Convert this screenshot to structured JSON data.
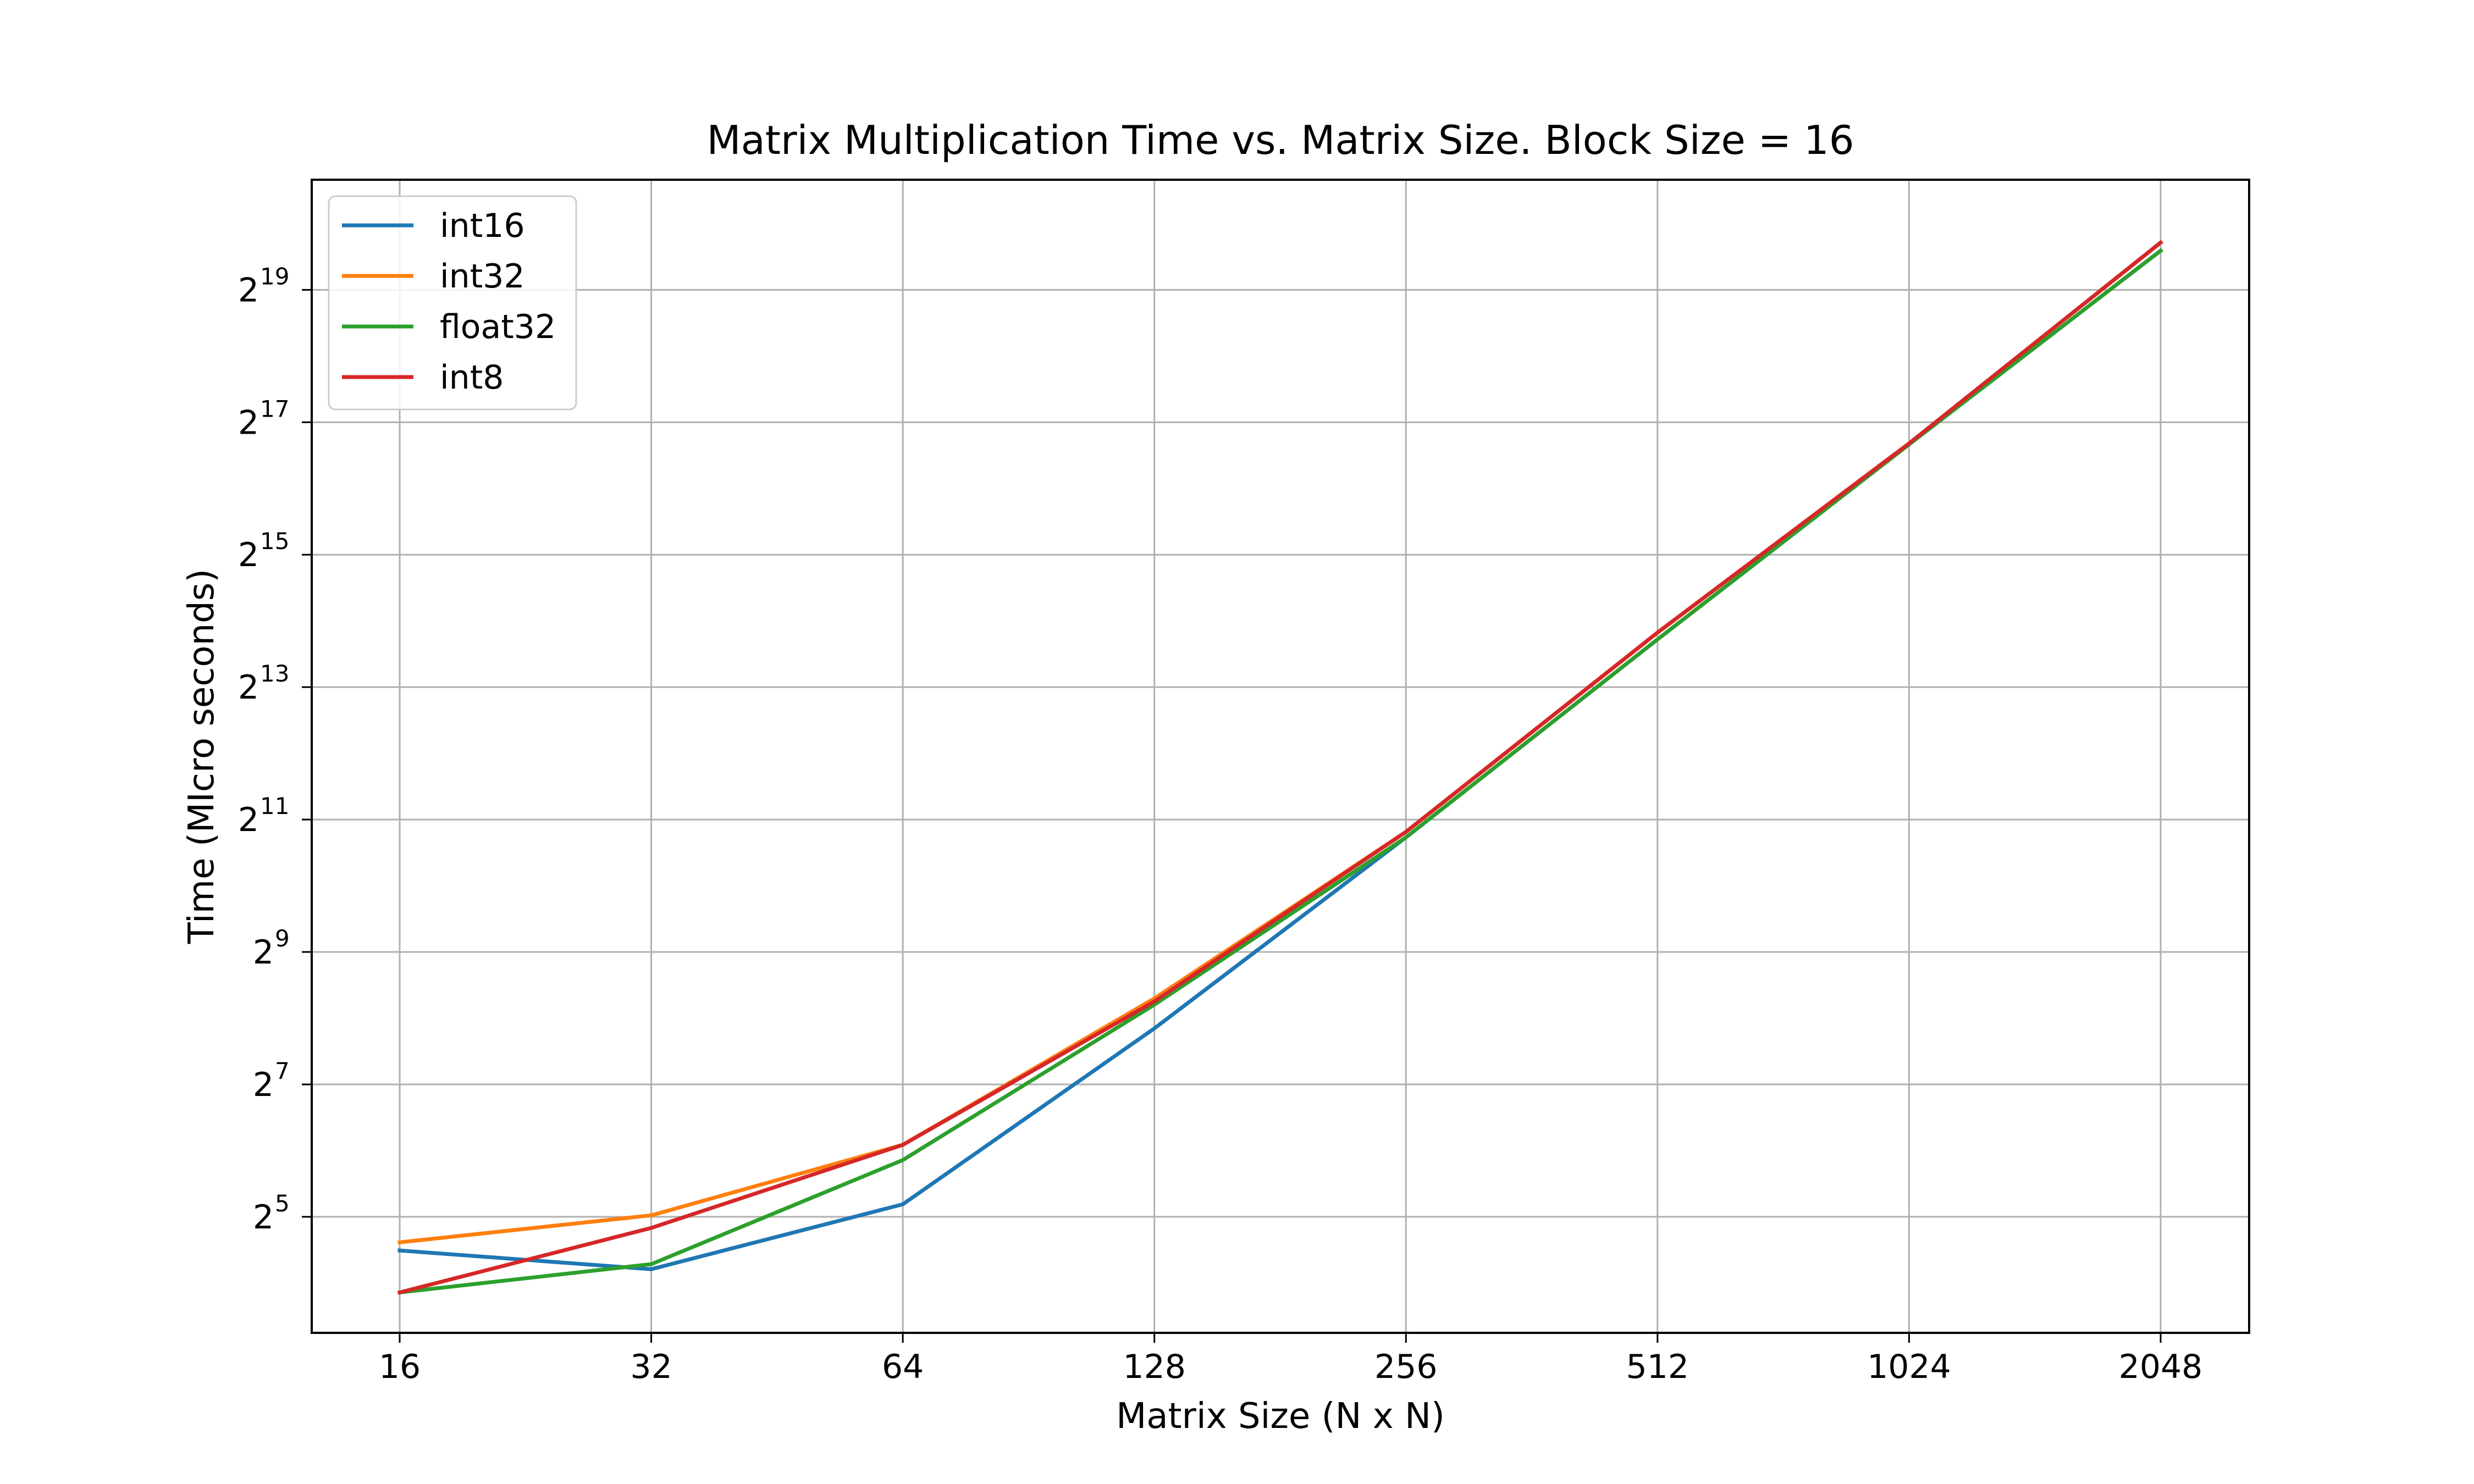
{
  "chart_data": {
    "type": "line",
    "title": "Matrix Multiplication Time vs. Matrix Size. Block Size = 16",
    "xlabel": "Matrix Size (N x N)",
    "ylabel": "Time (MIcro seconds)",
    "xscale": "log2",
    "yscale": "log2",
    "x": [
      16,
      32,
      64,
      128,
      256,
      512,
      1024,
      2048
    ],
    "x_tick_labels": [
      "16",
      "32",
      "64",
      "128",
      "256",
      "512",
      "1024",
      "2048"
    ],
    "y_ticks": [
      {
        "base": "2",
        "exp": "5",
        "value": 32
      },
      {
        "base": "2",
        "exp": "7",
        "value": 128
      },
      {
        "base": "2",
        "exp": "9",
        "value": 512
      },
      {
        "base": "2",
        "exp": "11",
        "value": 2048
      },
      {
        "base": "2",
        "exp": "13",
        "value": 8192
      },
      {
        "base": "2",
        "exp": "15",
        "value": 32768
      },
      {
        "base": "2",
        "exp": "17",
        "value": 131072
      },
      {
        "base": "2",
        "exp": "19",
        "value": 524288
      }
    ],
    "ylim": [
      9.5,
      1660000
    ],
    "grid": true,
    "legend_position": "top-left",
    "series": [
      {
        "name": "int16",
        "color": "#1f77b4",
        "values": [
          22.5,
          18.5,
          36.5,
          230,
          1700,
          13500,
          104000,
          790000
        ]
      },
      {
        "name": "int32",
        "color": "#ff7f0e",
        "values": [
          24.5,
          32.5,
          68,
          315,
          1800,
          14500,
          105000,
          860000
        ]
      },
      {
        "name": "float32",
        "color": "#2ca02c",
        "values": [
          14.5,
          19.5,
          58,
          295,
          1700,
          13500,
          104000,
          790000
        ]
      },
      {
        "name": "int8",
        "color": "#d62728",
        "values": [
          14.5,
          28.5,
          68,
          305,
          1800,
          14500,
          105000,
          860000
        ]
      }
    ]
  }
}
